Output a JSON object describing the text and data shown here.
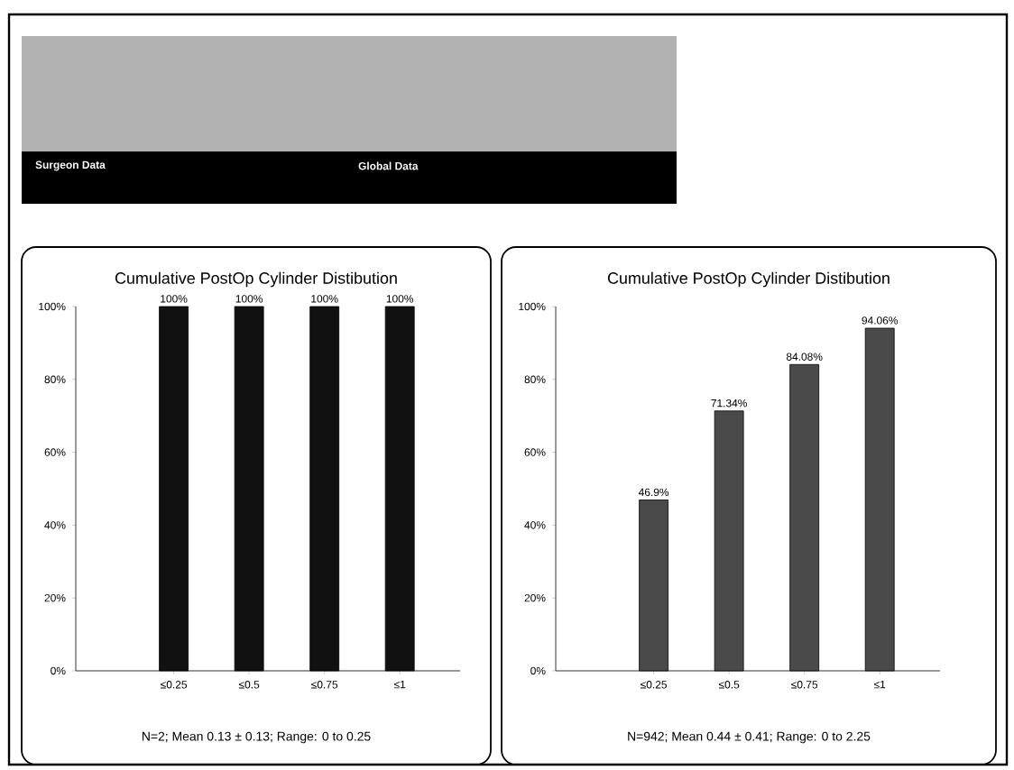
{
  "chart_data": [
    {
      "type": "bar",
      "title": "Cumulative PostOp Cylinder Distibution",
      "categories": [
        "≤0.25",
        "≤0.5",
        "≤0.75",
        "≤1"
      ],
      "values": [
        100,
        100,
        100,
        100
      ],
      "color": "#111111",
      "value_labels": [
        "100%",
        "100%",
        "100%",
        "100%"
      ],
      "ylim": [
        0,
        100
      ],
      "yticks": [
        {
          "value": 0,
          "label": "0%"
        },
        {
          "value": 20,
          "label": "20%"
        },
        {
          "value": 40,
          "label": "40%"
        },
        {
          "value": 60,
          "label": "60%"
        },
        {
          "value": 80,
          "label": "80%"
        },
        {
          "value": 100,
          "label": "100%"
        }
      ],
      "annotations": [
        "Surgeon Data",
        "N=2; Mean 0.13 ± 0.13; Range: 0 to 0.25"
      ]
    },
    {
      "type": "bar",
      "title": "Cumulative PostOp Cylinder Distibution",
      "categories": [
        "≤0.25",
        "≤0.5",
        "≤0.75",
        "≤1"
      ],
      "values": [
        46.9,
        71.34,
        84.08,
        94.06
      ],
      "color": "#4a4a4a",
      "value_labels": [
        "46.9%",
        "71.34%",
        "84.08%",
        "94.06%"
      ],
      "ylim": [
        0,
        100
      ],
      "yticks": [
        {
          "value": 0,
          "label": "0%"
        },
        {
          "value": 20,
          "label": "20%"
        },
        {
          "value": 40,
          "label": "40%"
        },
        {
          "value": 60,
          "label": "60%"
        },
        {
          "value": 80,
          "label": "80%"
        },
        {
          "value": 100,
          "label": "100%"
        }
      ],
      "annotations": [
        "Global Data",
        "N=942; Mean 0.44 ± 0.41; Range: 0 to 2.25"
      ]
    }
  ]
}
